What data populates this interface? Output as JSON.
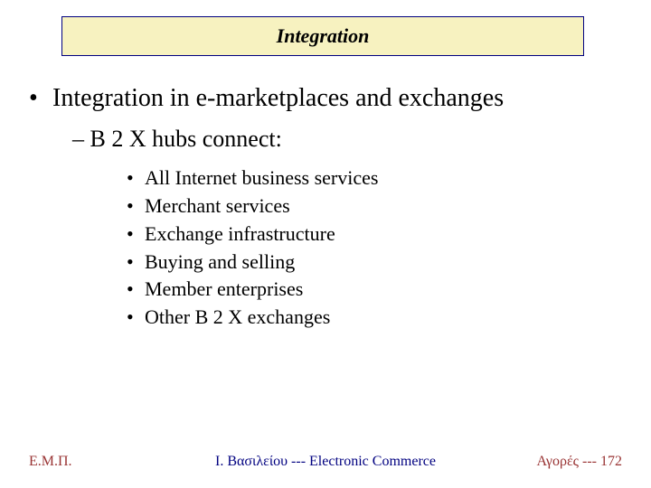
{
  "title": "Integration",
  "bullet_l1": "Integration in e-marketplaces and exchanges",
  "bullet_l2": "– B 2 X hubs connect:",
  "sub_items": [
    "All Internet business services",
    "Merchant services",
    "Exchange infrastructure",
    "Buying and selling",
    "Member enterprises",
    "Other B 2 X exchanges"
  ],
  "footer": {
    "left": "Ε.Μ.Π.",
    "center": "Ι. Βασιλείου --- Electronic Commerce",
    "right_label": "Αγορές  ---  ",
    "right_page": "172"
  },
  "style": {
    "title_bg": "#f7f2c0",
    "title_border": "#000080",
    "footer_left_color": "#993333",
    "footer_center_color": "#000080",
    "footer_right_color": "#993333",
    "l1_fontsize": 28,
    "l2_fontsize": 26,
    "l3_fontsize": 22,
    "title_fontsize": 22
  }
}
